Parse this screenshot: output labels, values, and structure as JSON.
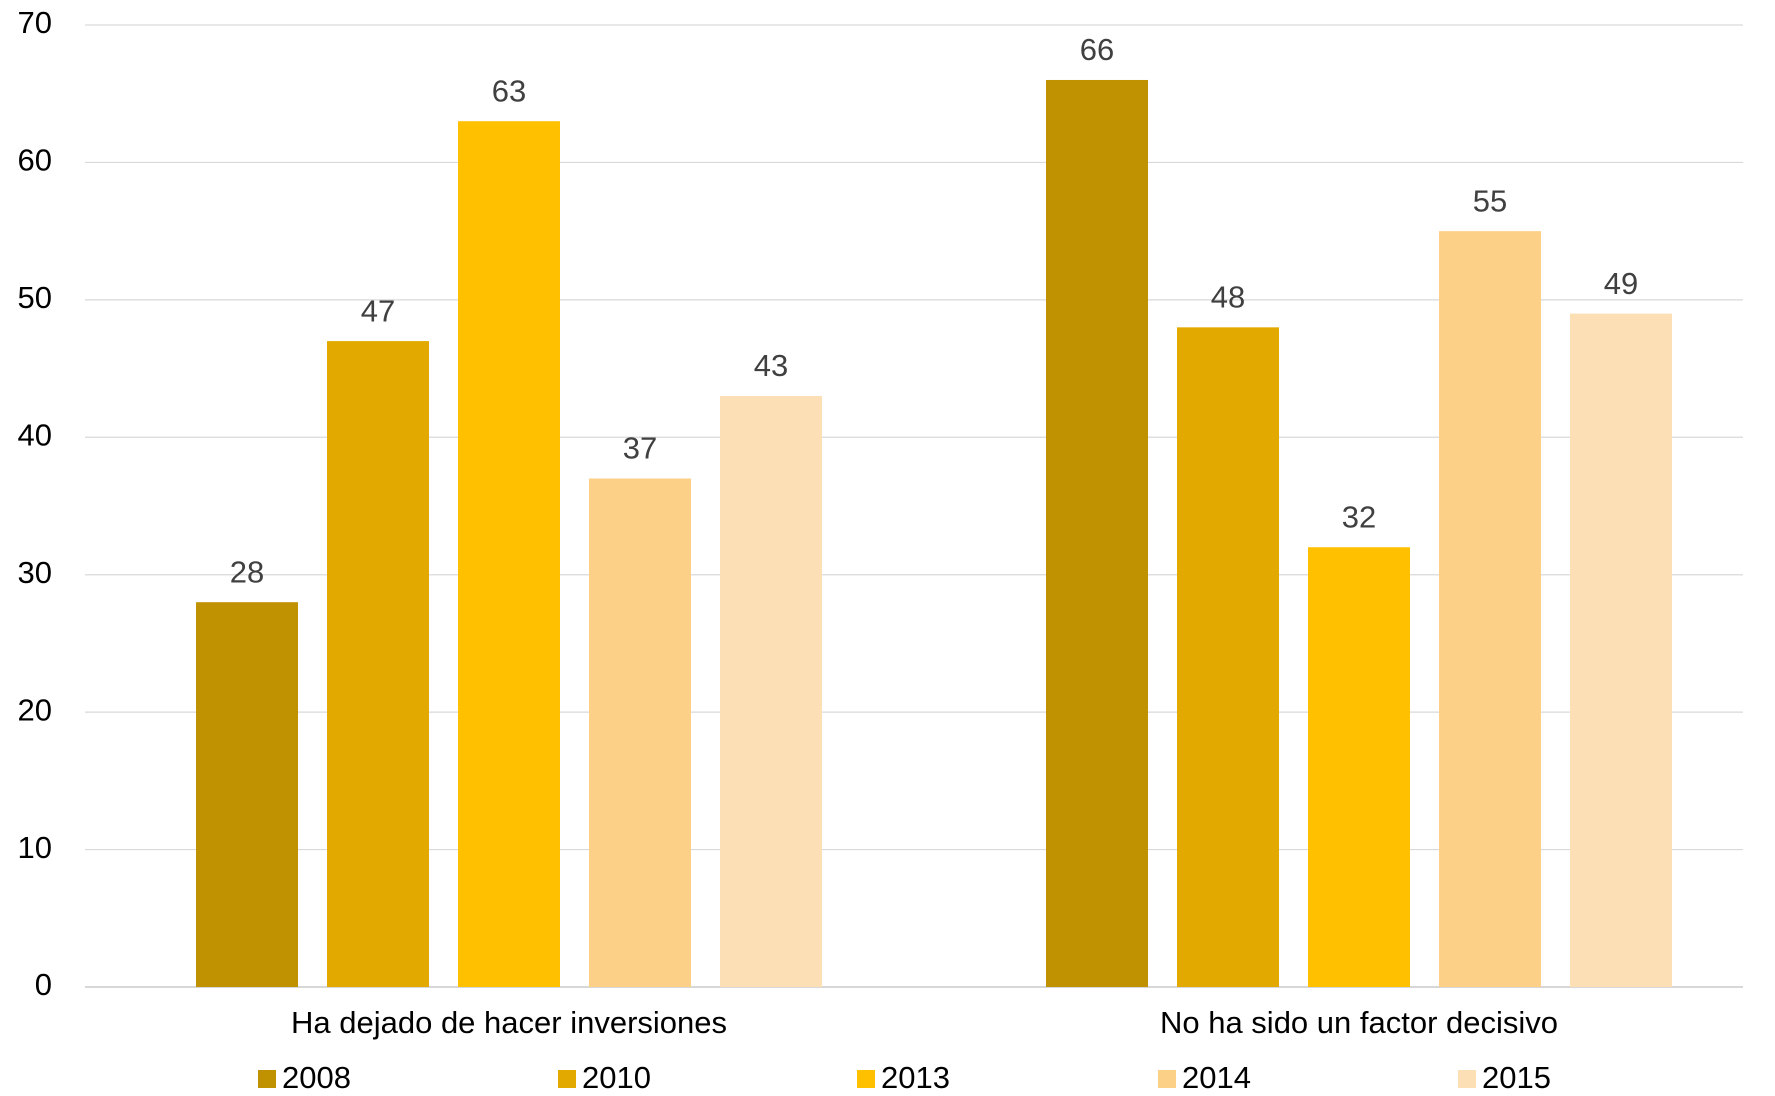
{
  "chart_data": {
    "type": "bar",
    "categories": [
      "Ha dejado de hacer inversiones",
      "No ha sido un factor decisivo"
    ],
    "series": [
      {
        "name": "2008",
        "color": "#C09100",
        "values": [
          28,
          66
        ]
      },
      {
        "name": "2010",
        "color": "#E2AA00",
        "values": [
          47,
          48
        ]
      },
      {
        "name": "2013",
        "color": "#FFC000",
        "values": [
          63,
          32
        ]
      },
      {
        "name": "2014",
        "color": "#FDD087",
        "values": [
          37,
          55
        ]
      },
      {
        "name": "2015",
        "color": "#FDDFB5",
        "values": [
          43,
          49
        ]
      }
    ],
    "ylim": [
      0,
      70
    ],
    "yticks": [
      0,
      10,
      20,
      30,
      40,
      50,
      60,
      70
    ],
    "grid": true,
    "legend": "bottom"
  }
}
